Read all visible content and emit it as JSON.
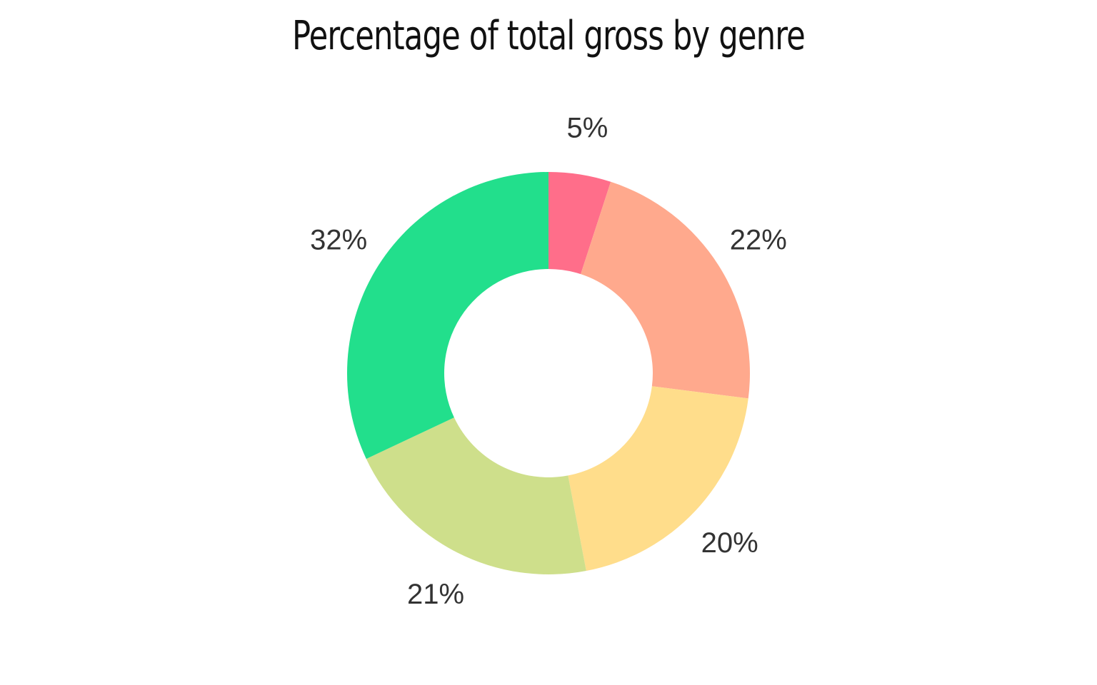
{
  "chart_data": {
    "type": "pie",
    "style": "donut",
    "title": "Percentage of total gross by genre",
    "values": [
      5,
      22,
      20,
      21,
      32
    ],
    "labels": [
      "5%",
      "22%",
      "20%",
      "21%",
      "32%"
    ],
    "colors": [
      "#ff6e8a",
      "#ffa98d",
      "#ffdd8b",
      "#cedf8b",
      "#22df8c"
    ],
    "start_angle": "12 o'clock",
    "direction": "clockwise",
    "legend": "none"
  }
}
